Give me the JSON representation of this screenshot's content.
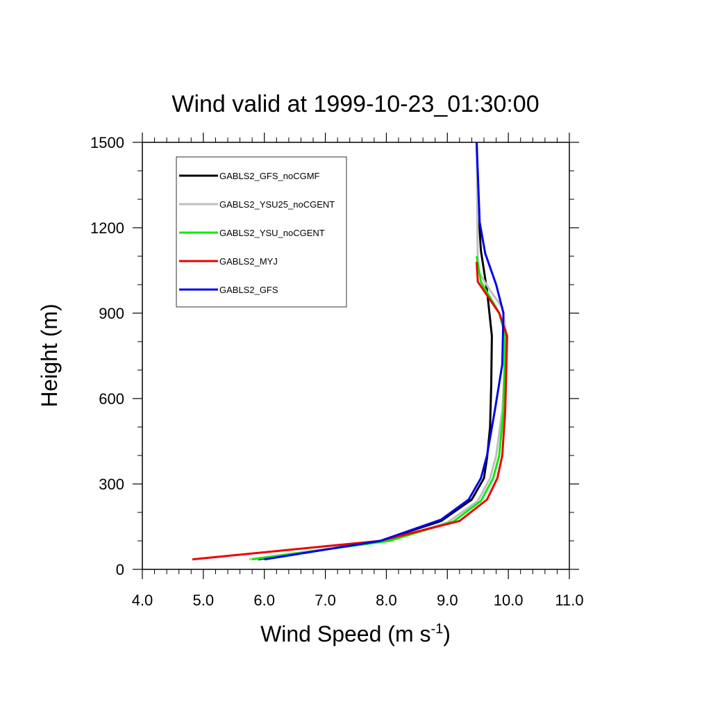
{
  "chart_data": {
    "type": "line",
    "title": "Wind valid at 1999-10-23_01:30:00",
    "xlabel": "Wind Speed (m s",
    "xlabel_sup": "-1",
    "xlabel_close": ")",
    "ylabel": "Height (m)",
    "xlim": [
      4.0,
      11.0
    ],
    "ylim": [
      0,
      1500
    ],
    "xticks": [
      4.0,
      5.0,
      6.0,
      7.0,
      8.0,
      9.0,
      10.0,
      11.0
    ],
    "xtick_labels": [
      "4.0",
      "5.0",
      "6.0",
      "7.0",
      "8.0",
      "9.0",
      "10.0",
      "11.0"
    ],
    "yticks": [
      0,
      300,
      600,
      900,
      1200,
      1500
    ],
    "ytick_labels": [
      "0",
      "300",
      "600",
      "900",
      "1200",
      "1500"
    ],
    "grid": false,
    "legend_position": "top-left",
    "series": [
      {
        "name": "GABLS2_GFS_noCGMF",
        "color": "#000000",
        "points": [
          [
            5.9,
            35
          ],
          [
            7.9,
            100
          ],
          [
            8.9,
            170
          ],
          [
            9.4,
            245
          ],
          [
            9.6,
            320
          ],
          [
            9.65,
            390
          ],
          [
            9.7,
            500
          ],
          [
            9.72,
            650
          ],
          [
            9.73,
            820
          ],
          [
            9.65,
            980
          ],
          [
            9.55,
            1120
          ],
          [
            9.5,
            1300
          ],
          [
            9.48,
            1500
          ]
        ]
      },
      {
        "name": "GABLS2_YSU25_noCGENT",
        "color": "#bfbfbf",
        "points": [
          [
            5.75,
            35
          ],
          [
            8.0,
            100
          ],
          [
            9.0,
            165
          ],
          [
            9.5,
            240
          ],
          [
            9.7,
            320
          ],
          [
            9.8,
            400
          ],
          [
            9.9,
            560
          ],
          [
            9.97,
            820
          ],
          [
            9.9,
            920
          ],
          [
            9.7,
            980
          ],
          [
            9.5,
            1050
          ],
          [
            9.48,
            1500
          ]
        ]
      },
      {
        "name": "GABLS2_YSU_noCGENT",
        "color": "#00ee00",
        "points": [
          [
            5.8,
            35
          ],
          [
            8.05,
            100
          ],
          [
            9.1,
            168
          ],
          [
            9.55,
            240
          ],
          [
            9.75,
            320
          ],
          [
            9.85,
            400
          ],
          [
            9.92,
            560
          ],
          [
            9.95,
            820
          ],
          [
            9.85,
            900
          ],
          [
            9.55,
            1010
          ],
          [
            9.48,
            1100
          ]
        ]
      },
      {
        "name": "GABLS2_MYJ",
        "color": "#ee0000",
        "points": [
          [
            4.82,
            35
          ],
          [
            7.9,
            100
          ],
          [
            9.2,
            170
          ],
          [
            9.65,
            245
          ],
          [
            9.82,
            320
          ],
          [
            9.9,
            400
          ],
          [
            9.95,
            560
          ],
          [
            9.98,
            820
          ],
          [
            9.85,
            900
          ],
          [
            9.5,
            1010
          ],
          [
            9.48,
            1080
          ]
        ]
      },
      {
        "name": "GABLS2_GFS",
        "color": "#0000ee",
        "points": [
          [
            6.0,
            35
          ],
          [
            7.9,
            100
          ],
          [
            8.9,
            175
          ],
          [
            9.35,
            245
          ],
          [
            9.55,
            320
          ],
          [
            9.65,
            400
          ],
          [
            9.78,
            560
          ],
          [
            9.9,
            720
          ],
          [
            9.92,
            900
          ],
          [
            9.8,
            1000
          ],
          [
            9.62,
            1110
          ],
          [
            9.53,
            1220
          ],
          [
            9.48,
            1500
          ]
        ]
      }
    ]
  }
}
